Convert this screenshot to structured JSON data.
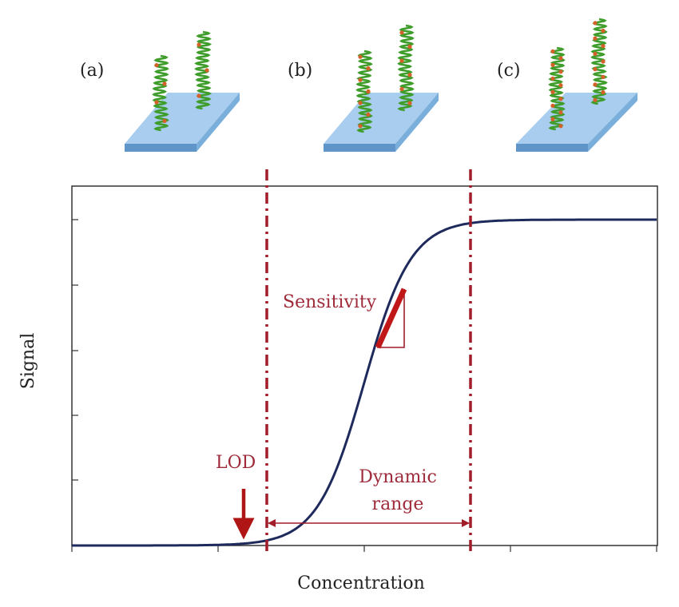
{
  "panels": [
    {
      "label": "(a)"
    },
    {
      "label": "(b)"
    },
    {
      "label": "(c)"
    }
  ],
  "axes": {
    "xlabel": "Concentration",
    "ylabel": "Signal"
  },
  "annotations": {
    "lod": "LOD",
    "sensitivity": "Sensitivity",
    "dynamic_range_line1": "Dynamic",
    "dynamic_range_line2": "range"
  },
  "colors": {
    "curve": "#1f2a5c",
    "accent": "#a11d2a",
    "accent_text": "#9e2a3a",
    "slide_top": "#a9cdee",
    "slide_side": "#5f95c8",
    "strand": "#3f9d2c",
    "bound": "#d4602a"
  }
}
